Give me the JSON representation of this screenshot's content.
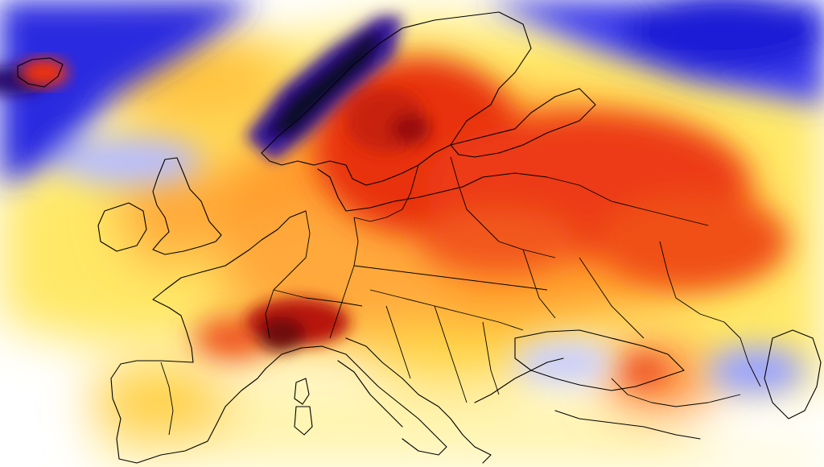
{
  "map": {
    "type": "temperature-anomaly-heatmap",
    "region": "Europe",
    "palette": {
      "deep_negative": "#1c0b3a",
      "purple": "#4a1a8c",
      "strong_negative": "#1f1fd6",
      "negative": "#3a3af0",
      "slight_negative": "#a9b0ff",
      "neutral": "#ffffff",
      "slight_positive": "#fff6a8",
      "positive_yellow": "#ffe24a",
      "positive_orange": "#ffa23a",
      "strong_positive": "#f5501a",
      "very_strong_positive": "#e0200f",
      "extreme_positive": "#7a0a0a"
    },
    "icons": [
      "coastline-overlay",
      "country-borders-overlay"
    ]
  }
}
